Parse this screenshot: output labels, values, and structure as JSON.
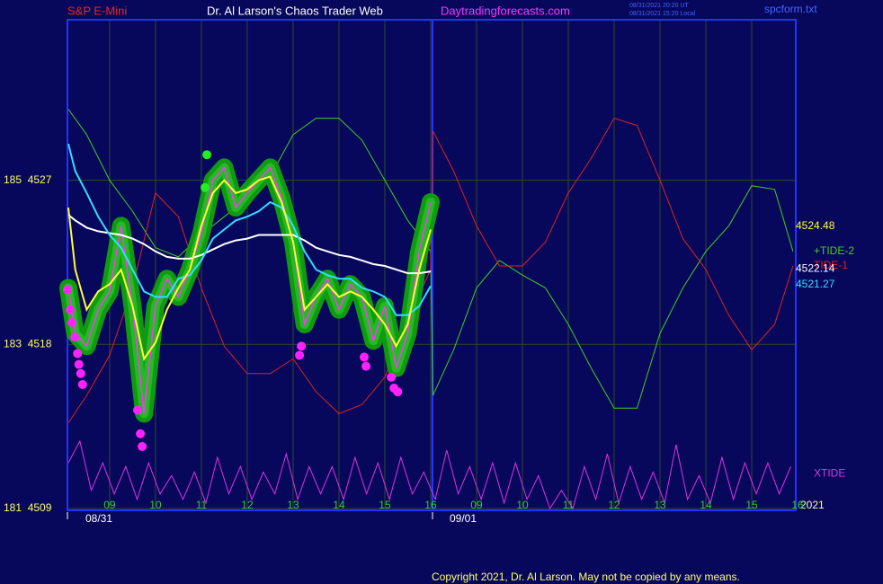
{
  "chart_data": {
    "type": "line",
    "header": {
      "instrument": "S&P E-Mini",
      "title": "Dr. Al Larson's Chaos Trader Web",
      "site": "Daytradingforecasts.com",
      "time_ut": "08/31/2021 20:20 UT",
      "time_local": "08/31/2021 15:20 Local",
      "file": "spcform.txt"
    },
    "date_labels": [
      "08/31",
      "09/01"
    ],
    "year_label": "2021",
    "copyright": "Copyright 2021, Dr. Al Larson. May not be copied by any means.",
    "xlim": [
      8.08,
      23.96
    ],
    "xticks": [
      {
        "value": 9,
        "label": "09"
      },
      10,
      11,
      12,
      13,
      14,
      15,
      16,
      {
        "value": 17,
        "label": "09"
      },
      {
        "value": 18,
        "label": "10"
      },
      {
        "value": 19,
        "label": "11"
      },
      {
        "value": 20,
        "label": "12"
      },
      {
        "value": 21,
        "label": "13"
      },
      {
        "value": 22,
        "label": "14"
      },
      {
        "value": 23,
        "label": "15"
      },
      {
        "value": 24,
        "label": "16"
      }
    ],
    "ylim": [
      4508.9,
      4535.8
    ],
    "yticks": [
      {
        "value": 4509,
        "label": "181  4509"
      },
      {
        "value": 4518,
        "label": "183  4518"
      },
      {
        "value": 4527,
        "label": "185  4527"
      }
    ],
    "grid": true,
    "x": [
      8.1,
      8.25,
      8.5,
      8.75,
      9,
      9.25,
      9.5,
      9.75,
      10,
      10.25,
      10.5,
      10.75,
      11,
      11.25,
      11.5,
      11.75,
      12,
      12.25,
      12.5,
      12.75,
      13,
      13.25,
      13.5,
      13.75,
      14,
      14.25,
      14.5,
      14.75,
      15,
      15.25,
      15.5,
      15.75,
      16
    ],
    "price": {
      "color": "#ff33ff",
      "halo_color": "#119911",
      "values": [
        4521.1,
        4518.6,
        4517.9,
        4519.9,
        4520.9,
        4524.5,
        4520.1,
        4514.2,
        4520.1,
        4521.6,
        4520.6,
        4522.1,
        4524.1,
        4527.0,
        4527.7,
        4525.5,
        4526.3,
        4527.0,
        4527.7,
        4526.0,
        4523.6,
        4519.1,
        4520.6,
        4521.6,
        4519.9,
        4521.3,
        4520.6,
        4518.2,
        4520.1,
        4516.7,
        4518.6,
        4523.1,
        4525.8
      ]
    },
    "averages": [
      {
        "color": "#ffffff",
        "end_value": 4522.14,
        "values": [
          4525.1,
          4524.8,
          4524.4,
          4524.2,
          4524.1,
          4524.0,
          4523.8,
          4523.5,
          4523.1,
          4522.8,
          4522.7,
          4522.7,
          4522.9,
          4523.2,
          4523.5,
          4523.7,
          4523.8,
          4524.0,
          4524.0,
          4524.0,
          4524.0,
          4523.7,
          4523.3,
          4523.1,
          4522.9,
          4522.8,
          4522.6,
          4522.4,
          4522.3,
          4522.1,
          4521.9,
          4521.9,
          4522.0
        ]
      },
      {
        "color": "#33ddff",
        "end_value": 4521.27,
        "values": [
          4529.0,
          4527.5,
          4526.3,
          4525.0,
          4524.0,
          4523.3,
          4522.1,
          4520.9,
          4520.6,
          4520.6,
          4521.6,
          4521.8,
          4522.6,
          4523.8,
          4524.3,
          4524.8,
          4525.0,
          4525.3,
          4525.8,
          4525.5,
          4524.5,
          4523.1,
          4522.1,
          4521.8,
          4521.6,
          4521.6,
          4521.1,
          4520.9,
          4520.6,
          4519.6,
          4519.6,
          4520.1,
          4521.2
        ]
      },
      {
        "color": "#ffff33",
        "end_value": 4524.48,
        "values": [
          4525.5,
          4522.1,
          4519.9,
          4520.9,
          4521.3,
          4522.1,
          4520.1,
          4517.2,
          4518.1,
          4519.9,
          4521.1,
          4522.1,
          4524.5,
          4526.3,
          4527.0,
          4526.3,
          4526.5,
          4527.0,
          4527.2,
          4525.8,
          4523.6,
          4519.9,
          4520.6,
          4521.3,
          4520.6,
          4520.9,
          4520.6,
          4519.9,
          4519.1,
          4517.9,
          4519.1,
          4522.1,
          4524.3
        ]
      }
    ],
    "series": [
      {
        "name": "+TIDE-2",
        "color": "#44cc22",
        "x": [
          8.1,
          8.5,
          9,
          9.5,
          10,
          10.5,
          11,
          11.5,
          12,
          12.5,
          13,
          13.5,
          14,
          14.5,
          15,
          15.5,
          16,
          16.05,
          16.5,
          17,
          17.5,
          18,
          18.5,
          19,
          19.5,
          20,
          20.5,
          21,
          21.5,
          22,
          22.5,
          23,
          23.5,
          23.9
        ],
        "values": [
          4530.9,
          4529.5,
          4527.0,
          4525.3,
          4523.3,
          4522.8,
          4524.0,
          4525.0,
          4526.0,
          4527.2,
          4529.5,
          4530.4,
          4530.4,
          4529.2,
          4527.0,
          4524.8,
          4523.1,
          4515.2,
          4517.7,
          4521.1,
          4522.6,
          4521.8,
          4521.1,
          4519.1,
          4516.7,
          4514.5,
          4514.5,
          4518.6,
          4521.1,
          4523.1,
          4524.5,
          4526.7,
          4526.5,
          4523.1
        ]
      },
      {
        "name": "TIDE-1",
        "color": "#dd2222",
        "x": [
          8.1,
          8.5,
          9,
          9.5,
          10,
          10.5,
          11,
          11.5,
          12,
          12.5,
          13,
          13.5,
          14,
          14.5,
          15,
          15.5,
          16,
          16.05,
          16.5,
          17,
          17.5,
          18,
          18.5,
          19,
          19.5,
          20,
          20.5,
          21,
          21.5,
          22,
          22.5,
          23,
          23.5,
          23.9
        ],
        "values": [
          4513.7,
          4515.2,
          4517.4,
          4521.1,
          4526.3,
          4525.0,
          4521.1,
          4517.9,
          4516.4,
          4516.4,
          4517.2,
          4515.4,
          4514.2,
          4514.7,
          4516.2,
          4519.4,
          4522.1,
          4529.7,
          4527.5,
          4524.5,
          4522.3,
          4522.3,
          4523.6,
          4526.3,
          4528.2,
          4530.4,
          4530.0,
          4527.0,
          4523.8,
          4522.1,
          4519.6,
          4517.7,
          4519.1,
          4522.3
        ]
      },
      {
        "name": "XTIDE",
        "color": "#dd33dd",
        "x": [
          8.1,
          8.35,
          8.6,
          8.85,
          9.1,
          9.35,
          9.6,
          9.85,
          10.1,
          10.35,
          10.6,
          10.85,
          11.1,
          11.35,
          11.6,
          11.85,
          12.1,
          12.35,
          12.6,
          12.85,
          13.1,
          13.35,
          13.6,
          13.85,
          14.1,
          14.35,
          14.6,
          14.85,
          15.1,
          15.35,
          15.6,
          15.85,
          16.1,
          16.35,
          16.6,
          16.85,
          17.1,
          17.35,
          17.6,
          17.85,
          18.1,
          18.35,
          18.6,
          18.85,
          19.1,
          19.35,
          19.6,
          19.85,
          20.1,
          20.35,
          20.6,
          20.85,
          21.1,
          21.35,
          21.6,
          21.85,
          22.1,
          22.35,
          22.6,
          22.85,
          23.1,
          23.35,
          23.6,
          23.85
        ],
        "values": [
          4511.5,
          4512.7,
          4510.0,
          4511.5,
          4509.8,
          4511.3,
          4509.5,
          4511.5,
          4509.8,
          4510.8,
          4509.5,
          4511.0,
          4509.3,
          4511.8,
          4509.8,
          4511.3,
          4509.5,
          4511.0,
          4509.8,
          4512.0,
          4509.5,
          4511.3,
          4509.8,
          4511.3,
          4509.5,
          4511.8,
          4509.8,
          4511.5,
          4509.5,
          4511.8,
          4509.8,
          4511.0,
          4509.5,
          4512.2,
          4509.8,
          4511.3,
          4509.5,
          4511.5,
          4509.3,
          4511.5,
          4509.5,
          4510.8,
          4509.0,
          4510.0,
          4509.0,
          4511.3,
          4509.5,
          4512.0,
          4509.3,
          4511.3,
          4509.5,
          4511.0,
          4509.3,
          4512.5,
          4509.5,
          4510.8,
          4509.3,
          4511.8,
          4509.5,
          4511.5,
          4509.8,
          4511.5,
          4509.8,
          4511.3
        ]
      }
    ],
    "markers": [
      {
        "color": "#ff22ff",
        "x": [
          8.08,
          8.14,
          8.18,
          8.24,
          8.3,
          8.33,
          8.37,
          8.41,
          9.61,
          9.67,
          9.71,
          13.14,
          13.18,
          14.55,
          14.59,
          15.14,
          15.2,
          15.28
        ],
        "values": [
          4521.0,
          4519.9,
          4519.2,
          4518.4,
          4517.5,
          4516.9,
          4516.4,
          4515.8,
          4514.4,
          4513.1,
          4512.4,
          4517.4,
          4517.9,
          4517.3,
          4516.8,
          4516.2,
          4515.6,
          4515.4
        ]
      },
      {
        "color": "#22ee22",
        "x": [
          11.12,
          11.08
        ],
        "values": [
          4528.4,
          4526.6
        ]
      }
    ]
  }
}
